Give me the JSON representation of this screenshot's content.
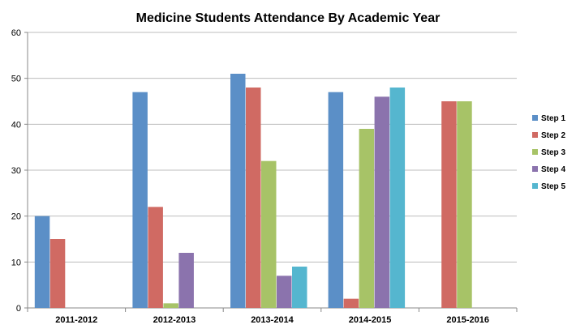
{
  "chart_data": {
    "type": "bar",
    "title": "Medicine Students Attendance By Academic Year",
    "xlabel": "",
    "ylabel": "",
    "categories": [
      "2011-2012",
      "2012-2013",
      "2013-2014",
      "2014-2015",
      "2015-2016"
    ],
    "ylim": [
      0,
      60
    ],
    "yticks": [
      0,
      10,
      20,
      30,
      40,
      50,
      60
    ],
    "grid": true,
    "legend_position": "right",
    "series": [
      {
        "name": "Step 1",
        "color": "#5b8fc7",
        "values": [
          20,
          47,
          51,
          47,
          0
        ]
      },
      {
        "name": "Step 2",
        "color": "#d06a63",
        "values": [
          15,
          22,
          48,
          2,
          45
        ]
      },
      {
        "name": "Step 3",
        "color": "#a7c367",
        "values": [
          0,
          1,
          32,
          39,
          45
        ]
      },
      {
        "name": "Step 4",
        "color": "#8b73ad",
        "values": [
          0,
          12,
          7,
          46,
          0
        ]
      },
      {
        "name": "Step 5",
        "color": "#55b6cf",
        "values": [
          0,
          0,
          9,
          48,
          0
        ]
      }
    ]
  }
}
